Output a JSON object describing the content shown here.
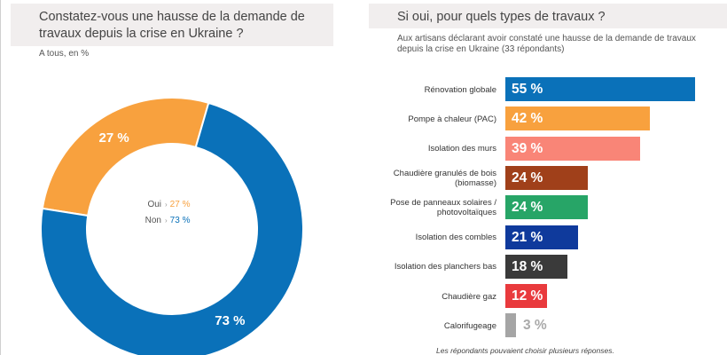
{
  "chart_data": [
    {
      "type": "pie",
      "title": "Constatez-vous une hausse de la demande de travaux depuis la crise en Ukraine ?",
      "subtitle": "A tous, en %",
      "categories": [
        "Oui",
        "Non"
      ],
      "values": [
        27,
        73
      ],
      "value_labels": [
        "27 %",
        "73 %"
      ],
      "colors": [
        "#f8a13e",
        "#0a71b9"
      ],
      "legend": [
        {
          "label": "Oui",
          "value": "27 %",
          "color": "#f8a13e"
        },
        {
          "label": "Non",
          "value": "73 %",
          "color": "#0a71b9"
        }
      ]
    },
    {
      "type": "bar",
      "orientation": "horizontal",
      "title": "Si oui, pour quels types de travaux ?",
      "subtitle": "Aux artisans déclarant avoir constaté une hausse de la demande de travaux depuis la crise en Ukraine (33 répondants)",
      "categories": [
        "Rénovation globale",
        "Pompe à chaleur (PAC)",
        "Isolation des murs",
        "Chaudière granulés de bois (biomasse)",
        "Pose de panneaux solaires / photovoltaïques",
        "Isolation des combles",
        "Isolation des planchers bas",
        "Chaudière gaz",
        "Calorifugeage"
      ],
      "values": [
        55,
        42,
        39,
        24,
        24,
        21,
        18,
        12,
        3
      ],
      "value_labels": [
        "55 %",
        "42 %",
        "39 %",
        "24 %",
        "24 %",
        "21 %",
        "18 %",
        "12 %",
        "3 %"
      ],
      "colors": [
        "#0a71b9",
        "#f8a13e",
        "#f98577",
        "#a0401a",
        "#27a567",
        "#0f3a9c",
        "#3a3a3a",
        "#e93a3d",
        "#a5a5a5"
      ],
      "xlim": [
        0,
        60
      ],
      "footnote": "Les répondants pouvaient choisir plusieurs réponses."
    }
  ]
}
